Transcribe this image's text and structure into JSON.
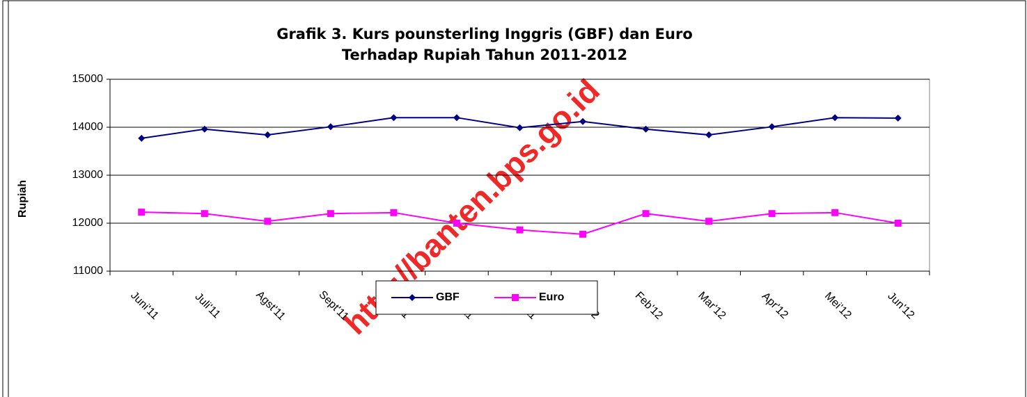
{
  "chart_data": {
    "type": "line",
    "title": "Grafik 3. Kurs pounsterling Inggris (GBF) dan Euro",
    "subtitle": "Terhadap Rupiah Tahun 2011-2012",
    "y_label": "Rupiah",
    "watermark": "http://banten.bps.go.id",
    "categories": [
      "Juni'11",
      "Juli'11",
      "Agst'11",
      "Sept'11",
      "Okt'11",
      "Nov'11",
      "Des'11",
      "Jan'12",
      "Feb'12",
      "Mar'12",
      "Apr'12",
      "Mei'12",
      "Jun'12"
    ],
    "series": [
      {
        "name": "GBF",
        "color": "#000080",
        "marker": "diamond",
        "values": [
          13770,
          13960,
          13840,
          14010,
          14200,
          14200,
          13990,
          14120,
          13960,
          13840,
          14010,
          14200,
          14190
        ]
      },
      {
        "name": "Euro",
        "color": "#ff00ff",
        "marker": "square",
        "values": [
          12230,
          12200,
          12040,
          12200,
          12220,
          12000,
          11860,
          11770,
          12200,
          12040,
          12200,
          12220,
          12000
        ]
      }
    ],
    "ylim": [
      11000,
      15000
    ],
    "yticks": [
      11000,
      12000,
      13000,
      14000,
      15000
    ],
    "grid": true,
    "legend": "bottom"
  }
}
